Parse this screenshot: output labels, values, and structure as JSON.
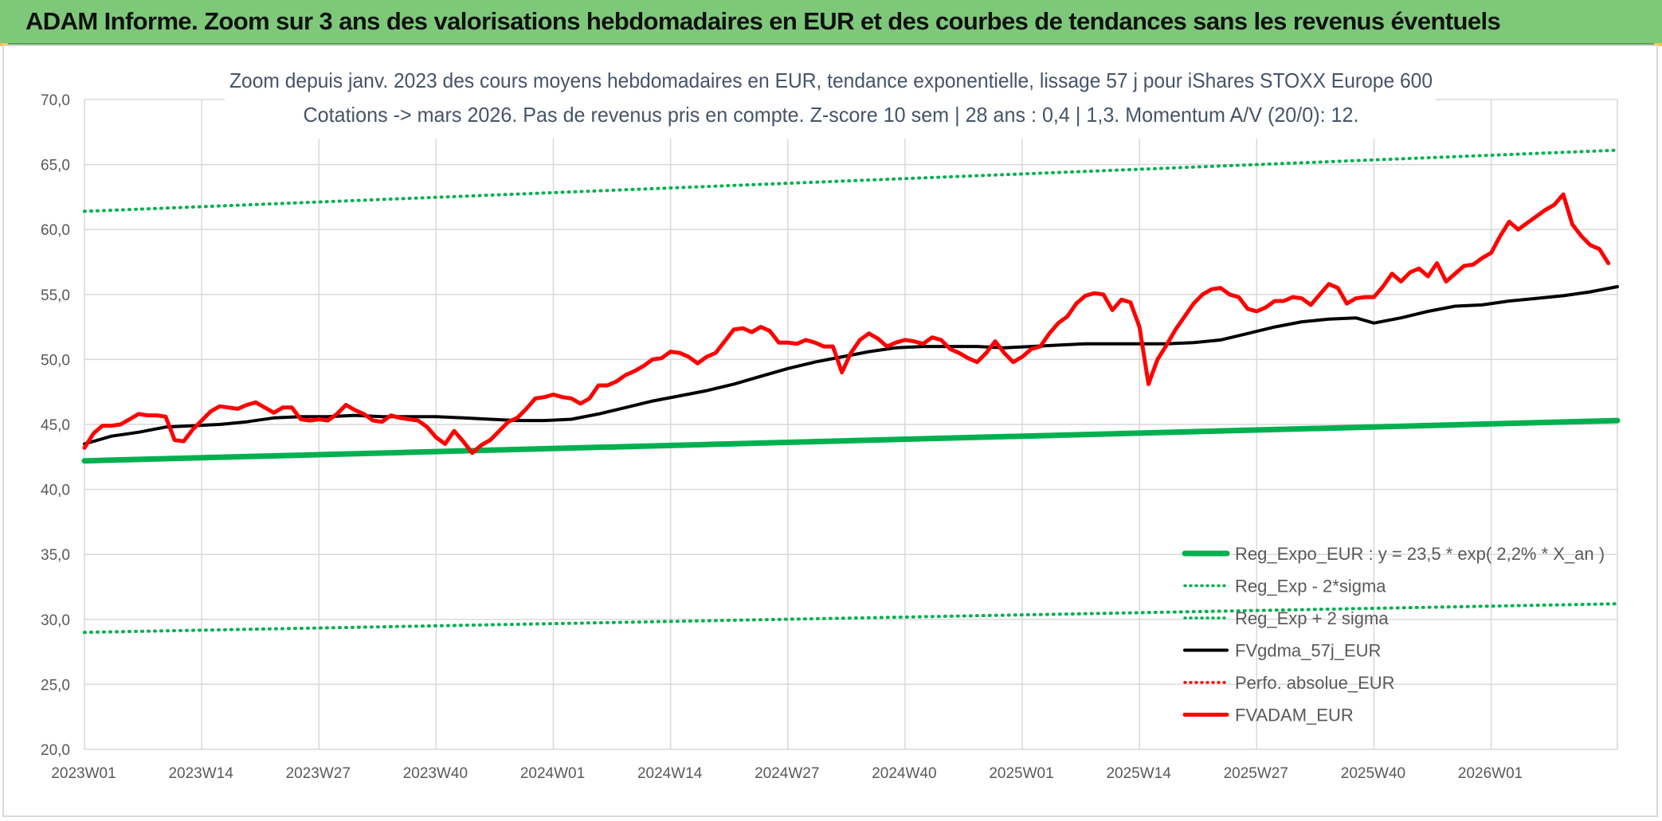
{
  "banner": {
    "title": "ADAM Informe. Zoom sur 3 ans des valorisations hebdomadaires en EUR et des courbes de tendances sans les revenus éventuels"
  },
  "colors": {
    "banner_bg": "#7ec87a",
    "reg_green": "#00b050",
    "fv_red": "#ff0000",
    "fvgdma_black": "#000000"
  },
  "chart_data": {
    "type": "line",
    "title": "Zoom depuis janv. 2023 des cours moyens hebdomadaires en EUR, tendance exponentielle, lissage 57 j pour iShares STOXX Europe 600",
    "subtitle": "Cotations -> mars 2026. Pas de revenus pris en compte. Z-score 10 sem | 28 ans : 0,4 | 1,3. Momentum A/V (20/0): 12.",
    "ylim": [
      20,
      70
    ],
    "y_ticks": [
      "20,0",
      "25,0",
      "30,0",
      "35,0",
      "40,0",
      "45,0",
      "50,0",
      "55,0",
      "60,0",
      "65,0",
      "70,0"
    ],
    "x_ticks": [
      "2023W01",
      "2023W14",
      "2023W27",
      "2023W40",
      "2024W01",
      "2024W14",
      "2024W27",
      "2024W40",
      "2025W01",
      "2025W14",
      "2025W27",
      "2025W40",
      "2026W01"
    ],
    "grid": true,
    "legend_position": "bottom-right",
    "series": [
      {
        "name": "Reg_Expo_EUR : y = 23,5 * exp( 2,2% *  X_an )",
        "style": "thick-solid",
        "color": "#00b050",
        "points": [
          [
            0,
            42.2
          ],
          [
            170,
            45.3
          ]
        ]
      },
      {
        "name": "Reg_Exp - 2*sigma",
        "style": "dotted",
        "color": "#00b050",
        "points": [
          [
            0,
            29.0
          ],
          [
            170,
            31.2
          ]
        ]
      },
      {
        "name": "Reg_Exp + 2 sigma",
        "style": "dotted",
        "color": "#00b050",
        "points": [
          [
            0,
            61.4
          ],
          [
            170,
            66.1
          ]
        ]
      },
      {
        "name": "FVgdma_57j_EUR",
        "style": "solid",
        "color": "#000000",
        "points": [
          [
            0,
            43.5
          ],
          [
            3,
            44.1
          ],
          [
            6,
            44.4
          ],
          [
            9,
            44.8
          ],
          [
            12,
            44.9
          ],
          [
            15,
            45.0
          ],
          [
            18,
            45.2
          ],
          [
            21,
            45.5
          ],
          [
            24,
            45.6
          ],
          [
            27,
            45.6
          ],
          [
            30,
            45.7
          ],
          [
            33,
            45.6
          ],
          [
            36,
            45.6
          ],
          [
            39,
            45.6
          ],
          [
            42,
            45.5
          ],
          [
            45,
            45.4
          ],
          [
            48,
            45.3
          ],
          [
            51,
            45.3
          ],
          [
            54,
            45.4
          ],
          [
            57,
            45.8
          ],
          [
            60,
            46.3
          ],
          [
            63,
            46.8
          ],
          [
            66,
            47.2
          ],
          [
            69,
            47.6
          ],
          [
            72,
            48.1
          ],
          [
            75,
            48.7
          ],
          [
            78,
            49.3
          ],
          [
            81,
            49.8
          ],
          [
            84,
            50.2
          ],
          [
            87,
            50.6
          ],
          [
            90,
            50.9
          ],
          [
            93,
            51.0
          ],
          [
            96,
            51.0
          ],
          [
            99,
            51.0
          ],
          [
            102,
            50.9
          ],
          [
            105,
            51.0
          ],
          [
            108,
            51.1
          ],
          [
            111,
            51.2
          ],
          [
            114,
            51.2
          ],
          [
            117,
            51.2
          ],
          [
            120,
            51.2
          ],
          [
            123,
            51.3
          ],
          [
            126,
            51.5
          ],
          [
            129,
            52.0
          ],
          [
            132,
            52.5
          ],
          [
            135,
            52.9
          ],
          [
            138,
            53.1
          ],
          [
            141,
            53.2
          ],
          [
            143,
            52.8
          ],
          [
            146,
            53.2
          ],
          [
            149,
            53.7
          ],
          [
            152,
            54.1
          ],
          [
            155,
            54.2
          ],
          [
            158,
            54.5
          ],
          [
            161,
            54.7
          ],
          [
            164,
            54.9
          ],
          [
            167,
            55.2
          ],
          [
            170,
            55.6
          ]
        ]
      },
      {
        "name": "Perfo. absolue_EUR",
        "style": "dotted",
        "color": "#ff0000",
        "points": []
      },
      {
        "name": "FVADAM_EUR",
        "style": "thick-solid",
        "color": "#ff0000",
        "points": [
          [
            0,
            43.2
          ],
          [
            1,
            44.3
          ],
          [
            2,
            44.9
          ],
          [
            3,
            44.9
          ],
          [
            4,
            45.0
          ],
          [
            5,
            45.4
          ],
          [
            6,
            45.8
          ],
          [
            7,
            45.7
          ],
          [
            8,
            45.7
          ],
          [
            9,
            45.6
          ],
          [
            10,
            43.8
          ],
          [
            11,
            43.7
          ],
          [
            12,
            44.6
          ],
          [
            13,
            45.3
          ],
          [
            14,
            46.0
          ],
          [
            15,
            46.4
          ],
          [
            16,
            46.3
          ],
          [
            17,
            46.2
          ],
          [
            18,
            46.5
          ],
          [
            19,
            46.7
          ],
          [
            20,
            46.3
          ],
          [
            21,
            45.9
          ],
          [
            22,
            46.3
          ],
          [
            23,
            46.3
          ],
          [
            24,
            45.4
          ],
          [
            25,
            45.3
          ],
          [
            26,
            45.4
          ],
          [
            27,
            45.3
          ],
          [
            28,
            45.8
          ],
          [
            29,
            46.5
          ],
          [
            30,
            46.1
          ],
          [
            31,
            45.8
          ],
          [
            32,
            45.3
          ],
          [
            33,
            45.2
          ],
          [
            34,
            45.7
          ],
          [
            35,
            45.5
          ],
          [
            36,
            45.4
          ],
          [
            37,
            45.3
          ],
          [
            38,
            44.8
          ],
          [
            39,
            44.0
          ],
          [
            40,
            43.5
          ],
          [
            41,
            44.5
          ],
          [
            42,
            43.7
          ],
          [
            43,
            42.8
          ],
          [
            44,
            43.4
          ],
          [
            45,
            43.8
          ],
          [
            46,
            44.5
          ],
          [
            47,
            45.2
          ],
          [
            48,
            45.5
          ],
          [
            49,
            46.2
          ],
          [
            50,
            47.0
          ],
          [
            51,
            47.1
          ],
          [
            52,
            47.3
          ],
          [
            53,
            47.1
          ],
          [
            54,
            47.0
          ],
          [
            55,
            46.6
          ],
          [
            56,
            47.0
          ],
          [
            57,
            48.0
          ],
          [
            58,
            48.0
          ],
          [
            59,
            48.3
          ],
          [
            60,
            48.8
          ],
          [
            61,
            49.1
          ],
          [
            62,
            49.5
          ],
          [
            63,
            50.0
          ],
          [
            64,
            50.1
          ],
          [
            65,
            50.6
          ],
          [
            66,
            50.5
          ],
          [
            67,
            50.2
          ],
          [
            68,
            49.7
          ],
          [
            69,
            50.2
          ],
          [
            70,
            50.5
          ],
          [
            71,
            51.4
          ],
          [
            72,
            52.3
          ],
          [
            73,
            52.4
          ],
          [
            74,
            52.1
          ],
          [
            75,
            52.5
          ],
          [
            76,
            52.2
          ],
          [
            77,
            51.3
          ],
          [
            78,
            51.3
          ],
          [
            79,
            51.2
          ],
          [
            80,
            51.5
          ],
          [
            81,
            51.3
          ],
          [
            82,
            51.0
          ],
          [
            83,
            51.0
          ],
          [
            84,
            49.0
          ],
          [
            85,
            50.5
          ],
          [
            86,
            51.5
          ],
          [
            87,
            52.0
          ],
          [
            88,
            51.6
          ],
          [
            89,
            51.0
          ],
          [
            90,
            51.3
          ],
          [
            91,
            51.5
          ],
          [
            92,
            51.4
          ],
          [
            93,
            51.2
          ],
          [
            94,
            51.7
          ],
          [
            95,
            51.5
          ],
          [
            96,
            50.8
          ],
          [
            97,
            50.5
          ],
          [
            98,
            50.1
          ],
          [
            99,
            49.8
          ],
          [
            100,
            50.5
          ],
          [
            101,
            51.4
          ],
          [
            102,
            50.5
          ],
          [
            103,
            49.8
          ],
          [
            104,
            50.2
          ],
          [
            105,
            50.8
          ],
          [
            106,
            51.0
          ],
          [
            107,
            52.0
          ],
          [
            108,
            52.8
          ],
          [
            109,
            53.3
          ],
          [
            110,
            54.3
          ],
          [
            111,
            54.9
          ],
          [
            112,
            55.1
          ],
          [
            113,
            55.0
          ],
          [
            114,
            53.8
          ],
          [
            115,
            54.6
          ],
          [
            116,
            54.4
          ],
          [
            117,
            52.5
          ],
          [
            118,
            48.1
          ],
          [
            119,
            50.0
          ],
          [
            120,
            51.1
          ],
          [
            121,
            52.3
          ],
          [
            122,
            53.3
          ],
          [
            123,
            54.3
          ],
          [
            124,
            55.0
          ],
          [
            125,
            55.4
          ],
          [
            126,
            55.5
          ],
          [
            127,
            55.0
          ],
          [
            128,
            54.8
          ],
          [
            129,
            53.9
          ],
          [
            130,
            53.7
          ],
          [
            131,
            54.0
          ],
          [
            132,
            54.5
          ],
          [
            133,
            54.5
          ],
          [
            134,
            54.8
          ],
          [
            135,
            54.7
          ],
          [
            136,
            54.2
          ],
          [
            137,
            55.0
          ],
          [
            138,
            55.8
          ],
          [
            139,
            55.5
          ],
          [
            140,
            54.3
          ],
          [
            141,
            54.7
          ],
          [
            142,
            54.8
          ],
          [
            143,
            54.8
          ],
          [
            144,
            55.6
          ],
          [
            145,
            56.6
          ],
          [
            146,
            56.0
          ],
          [
            147,
            56.7
          ],
          [
            148,
            57.0
          ],
          [
            149,
            56.4
          ],
          [
            150,
            57.4
          ],
          [
            151,
            56.0
          ],
          [
            152,
            56.6
          ],
          [
            153,
            57.2
          ],
          [
            154,
            57.3
          ],
          [
            155,
            57.8
          ],
          [
            156,
            58.2
          ],
          [
            157,
            59.5
          ],
          [
            158,
            60.6
          ],
          [
            159,
            60.0
          ],
          [
            160,
            60.5
          ],
          [
            161,
            61.0
          ],
          [
            162,
            61.5
          ],
          [
            163,
            61.9
          ],
          [
            164,
            62.7
          ],
          [
            165,
            60.4
          ],
          [
            166,
            59.5
          ],
          [
            167,
            58.8
          ],
          [
            168,
            58.5
          ],
          [
            169,
            57.4
          ]
        ]
      }
    ]
  }
}
